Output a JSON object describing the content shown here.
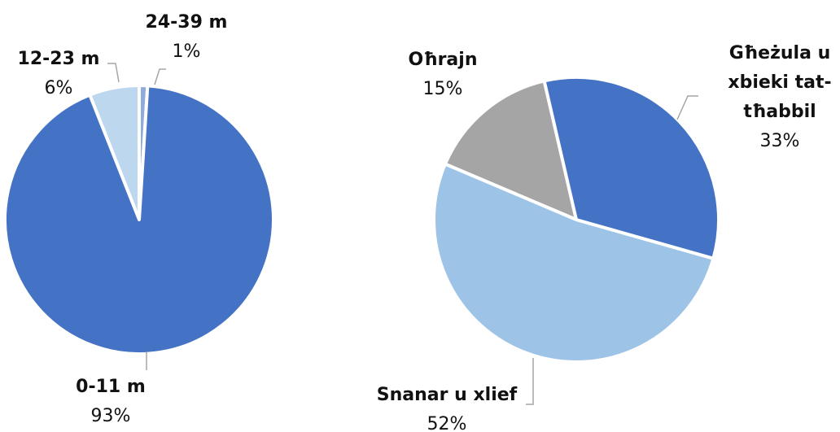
{
  "chart_data": [
    {
      "type": "pie",
      "categories": [
        "0-11 m",
        "12-23 m",
        "24-39 m"
      ],
      "values": [
        93,
        6,
        1
      ],
      "value_labels": [
        "93%",
        "6%",
        "1%"
      ],
      "colors": [
        "#4472c4",
        "#bdd7ee",
        "#8faadc"
      ]
    },
    {
      "type": "pie",
      "categories": [
        "Għeżula u xbieki tat-tħabbil",
        "Snanar u xlief",
        "Oħrajn"
      ],
      "values": [
        33,
        52,
        15
      ],
      "value_labels": [
        "33%",
        "52%",
        "15%"
      ],
      "colors": [
        "#4472c4",
        "#9dc3e6",
        "#a5a5a5"
      ]
    }
  ]
}
